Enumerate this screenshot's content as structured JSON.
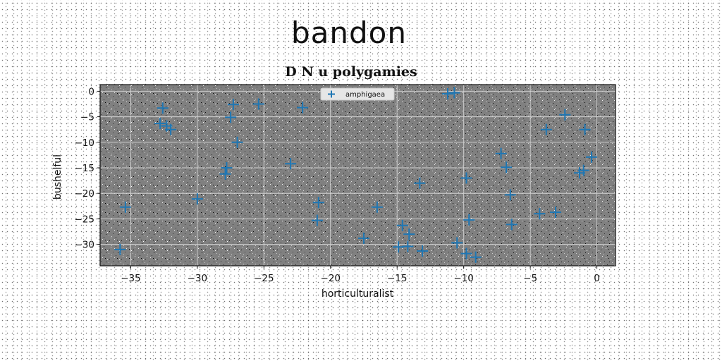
{
  "page": {
    "title": "bandon"
  },
  "colors": {
    "plot_bg": "#808080",
    "marker": "#1f77b4",
    "grid": "#d0d0d0"
  },
  "chart_data": {
    "type": "scatter",
    "title": "D N u polygamies",
    "xlabel": "horticulturalist",
    "ylabel": "bushelful",
    "xlim": [
      -37.3,
      1.4
    ],
    "ylim": [
      -34.2,
      1.3
    ],
    "xticks": [
      -35,
      -30,
      -25,
      -20,
      -15,
      -10,
      -5,
      0
    ],
    "yticks": [
      0,
      -5,
      -10,
      -15,
      -20,
      -25,
      -30
    ],
    "grid": true,
    "legend": {
      "position": "upper-center",
      "entries": [
        "amphigaea"
      ]
    },
    "series": [
      {
        "name": "amphigaea",
        "marker": "plus",
        "points": [
          [
            -35.8,
            -31.0
          ],
          [
            -35.4,
            -22.7
          ],
          [
            -32.6,
            -3.3
          ],
          [
            -32.8,
            -6.3
          ],
          [
            -32.3,
            -6.8
          ],
          [
            -32.0,
            -7.5
          ],
          [
            -30.0,
            -21.1
          ],
          [
            -27.9,
            -16.2
          ],
          [
            -27.8,
            -15.0
          ],
          [
            -27.5,
            -5.1
          ],
          [
            -27.3,
            -2.6
          ],
          [
            -27.0,
            -10.0
          ],
          [
            -25.4,
            -2.5
          ],
          [
            -23.0,
            -14.2
          ],
          [
            -22.1,
            -3.2
          ],
          [
            -20.9,
            -21.8
          ],
          [
            -21.0,
            -25.3
          ],
          [
            -17.5,
            -28.8
          ],
          [
            -16.5,
            -22.7
          ],
          [
            -14.9,
            -30.5
          ],
          [
            -14.6,
            -26.3
          ],
          [
            -14.2,
            -30.4
          ],
          [
            -14.1,
            -28.0
          ],
          [
            -13.3,
            -18.0
          ],
          [
            -13.1,
            -31.3
          ],
          [
            -11.2,
            -0.5
          ],
          [
            -10.7,
            -0.3
          ],
          [
            -10.5,
            -29.7
          ],
          [
            -9.8,
            -17.0
          ],
          [
            -9.8,
            -31.8
          ],
          [
            -9.6,
            -25.2
          ],
          [
            -9.1,
            -32.5
          ],
          [
            -7.2,
            -12.2
          ],
          [
            -6.8,
            -14.9
          ],
          [
            -6.5,
            -20.3
          ],
          [
            -6.4,
            -26.1
          ],
          [
            -4.3,
            -24.0
          ],
          [
            -3.8,
            -7.5
          ],
          [
            -3.1,
            -23.7
          ],
          [
            -2.4,
            -4.6
          ],
          [
            -1.3,
            -16.0
          ],
          [
            -1.0,
            -15.5
          ],
          [
            -0.9,
            -7.5
          ],
          [
            -0.4,
            -12.9
          ]
        ]
      }
    ]
  }
}
